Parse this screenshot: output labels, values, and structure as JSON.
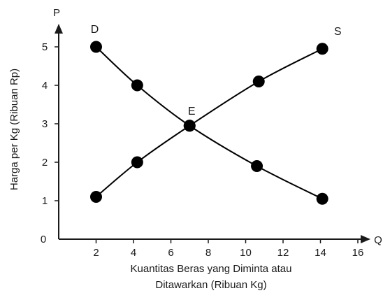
{
  "chart_data": {
    "type": "line",
    "xlabel_line1": "Kuantitas Beras yang Diminta atau",
    "xlabel_line2": "Ditawarkan (Ribuan Kg)",
    "ylabel": "Harga per Kg (Ribuan Rp)",
    "x_axis_letter": "Q",
    "y_axis_letter": "P",
    "origin_label": "0",
    "xlim": [
      0,
      16
    ],
    "ylim": [
      0,
      5.5
    ],
    "x_ticks": [
      2,
      4,
      6,
      8,
      10,
      12,
      14,
      16
    ],
    "y_ticks": [
      1,
      2,
      3,
      4,
      5
    ],
    "grid": false,
    "series": [
      {
        "name": "D",
        "color": "#000000",
        "x": [
          2,
          4.2,
          7,
          10.6,
          14.1
        ],
        "y": [
          5,
          4,
          2.95,
          1.9,
          1.05
        ]
      },
      {
        "name": "S",
        "color": "#000000",
        "x": [
          2,
          4.2,
          7,
          10.7,
          14.1
        ],
        "y": [
          1.1,
          2,
          2.95,
          4.1,
          4.95
        ]
      }
    ],
    "annotations": [
      {
        "text": "E",
        "x": 7,
        "y": 2.95
      }
    ]
  }
}
